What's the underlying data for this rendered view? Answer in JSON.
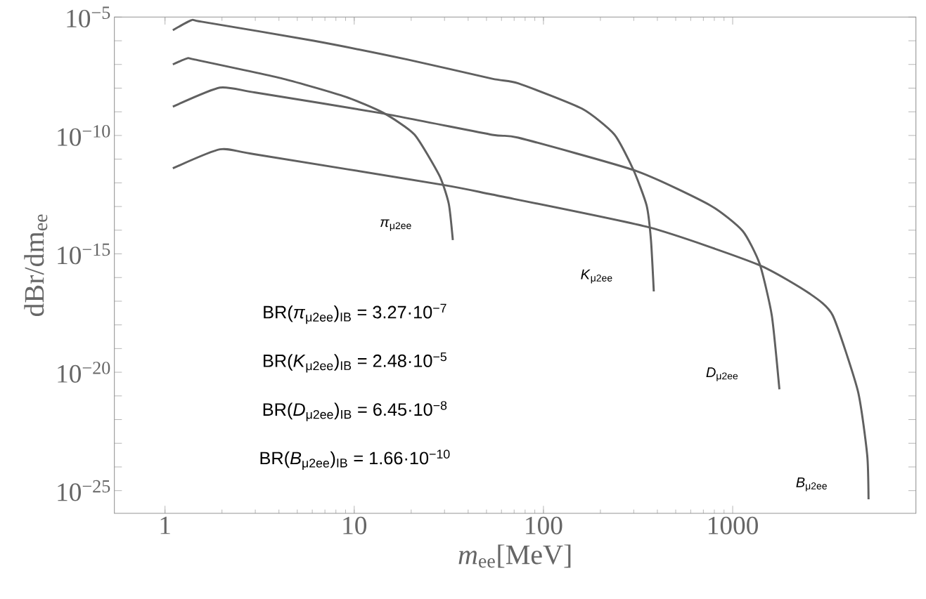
{
  "chart_data": {
    "type": "line",
    "log": "xy",
    "xlabel": "*m*$_{ee}$[MeV]",
    "ylabel": "dBr/dm$_{ee}$",
    "xlim": [
      0.54,
      9300
    ],
    "ylim": [
      1.1e-26,
      1e-05
    ],
    "xticks": [
      1,
      10,
      100,
      1000
    ],
    "yticks": [
      {
        "value": 1e-05,
        "label": "10$^{−5}$"
      },
      {
        "value": 1e-06,
        "label": null
      },
      {
        "value": 1e-07,
        "label": null
      },
      {
        "value": 1e-08,
        "label": null
      },
      {
        "value": 1e-09,
        "label": null
      },
      {
        "value": 1e-10,
        "label": "10$^{−10}$"
      },
      {
        "value": 1e-11,
        "label": null
      },
      {
        "value": 1e-12,
        "label": null
      },
      {
        "value": 1e-13,
        "label": null
      },
      {
        "value": 1e-14,
        "label": null
      },
      {
        "value": 1e-15,
        "label": "10$^{−15}$"
      },
      {
        "value": 1e-16,
        "label": null
      },
      {
        "value": 1e-17,
        "label": null
      },
      {
        "value": 1e-18,
        "label": null
      },
      {
        "value": 1e-19,
        "label": null
      },
      {
        "value": 1e-20,
        "label": "10$^{−20}$"
      },
      {
        "value": 1e-21,
        "label": null
      },
      {
        "value": 1e-22,
        "label": null
      },
      {
        "value": 1e-23,
        "label": null
      },
      {
        "value": 1e-24,
        "label": null
      },
      {
        "value": 1e-25,
        "label": "10$^{−25}$"
      }
    ],
    "series": [
      {
        "name": "*K*$_{μ2ee}$",
        "color": "#606060",
        "x": [
          1.1,
          1.38,
          1.56,
          6.1,
          19.2,
          53.6,
          73.5,
          160,
          237,
          299,
          351,
          370,
          383
        ],
        "values": [
          2.8e-06,
          7.4e-06,
          6.4e-06,
          1e-06,
          1.6e-07,
          2.5e-08,
          1.6e-08,
          1.35e-09,
          1.1e-10,
          3.5e-12,
          1.1e-13,
          3.8e-15,
          2.6e-17
        ]
      },
      {
        "name": "*π*$_{μ2ee}$",
        "color": "#606060",
        "x": [
          1.1,
          1.31,
          1.44,
          4.2,
          9.0,
          14.3,
          20.8,
          28.2,
          31.6,
          33.2
        ],
        "values": [
          1e-07,
          1.8e-07,
          1.6e-07,
          2.5e-08,
          4.3e-09,
          8.9e-10,
          1.1e-10,
          2e-12,
          1.3e-13,
          3.8e-15
        ]
      },
      {
        "name": "*D*$_{μ2ee}$",
        "color": "#606060",
        "x": [
          1.1,
          1.95,
          3.0,
          13.7,
          53.6,
          73.5,
          312,
          764,
          1130,
          1390,
          1610,
          1766
        ],
        "values": [
          1.65e-09,
          1.05e-08,
          6.5e-09,
          8.9e-10,
          1.07e-10,
          8.1e-11,
          3.1e-12,
          1.1e-13,
          9.2e-15,
          3.7e-16,
          2.5e-18,
          1.9e-21
        ]
      },
      {
        "name": "*B*$_{μ2ee}$",
        "color": "#606060",
        "x": [
          1.1,
          1.95,
          2.99,
          29.2,
          53.6,
          363,
          1365,
          2550,
          3380,
          4590,
          5140,
          5225
        ],
        "values": [
          4.1e-12,
          2.6e-11,
          1.6e-11,
          8.3e-13,
          3.2e-13,
          1.3e-14,
          3.5e-16,
          2.1e-17,
          2.5e-18,
          1.6e-21,
          3.2e-24,
          4.3e-26
        ]
      }
    ],
    "annotations": [
      "BR(*π*$_{μ2ee}$)$_{IB}$ = 3.27·10$^{−7}$",
      "BR(*K*$_{μ2ee}$)$_{IB}$ = 2.48·10$^{−5}$",
      "BR(*D*$_{μ2ee}$)$_{IB}$ = 6.45·10$^{−8}$",
      "BR(*B*$_{μ2ee}$)$_{IB}$ = 1.66·10$^{−10}$"
    ]
  }
}
